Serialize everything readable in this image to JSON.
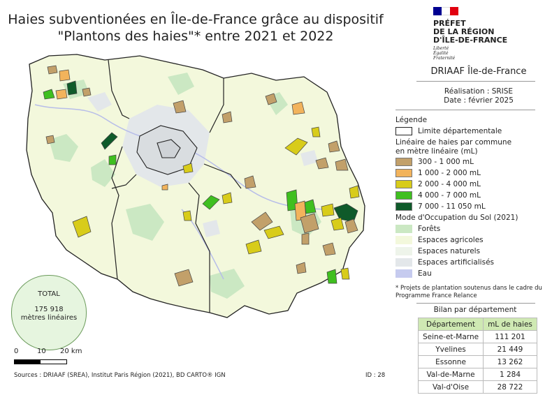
{
  "title": {
    "line1": "Haies subventionées en Île-de-France grâce au dispositif",
    "line2": "\"Plantons des haies\"* entre 2021 et 2022"
  },
  "logo": {
    "line1": "PRÉFET",
    "line2": "DE LA RÉGION",
    "line3": "D'ÎLE-DE-FRANCE",
    "motto1": "Liberté",
    "motto2": "Égalité",
    "motto3": "Fraternité",
    "flag_colors": [
      "#000091",
      "#ffffff",
      "#e1000f"
    ]
  },
  "org": "DRIAAF Île-de-France",
  "realisation": {
    "line1": "Réalisation : SRISE",
    "line2": "Date : février 2025"
  },
  "legend": {
    "title": "Légende",
    "boundary_label": "Limite départementale",
    "hedge_title_1": "Linéaire de haies par commune",
    "hedge_title_2": "en mètre linéaire (mL)",
    "hedge_classes": [
      {
        "label": "300 - 1 000 mL",
        "color": "#c2a06a"
      },
      {
        "label": "1 000 - 2 000 mL",
        "color": "#f2b35c"
      },
      {
        "label": "2 000 - 4 000 mL",
        "color": "#d8cc1a"
      },
      {
        "label": "4 000 - 7 000 mL",
        "color": "#3fbf1f"
      },
      {
        "label": "7 000 - 11 050 mL",
        "color": "#0f5a2a"
      }
    ],
    "land_title": "Mode d'Occupation du Sol (2021)",
    "land_classes": [
      {
        "label": "Forêts",
        "color": "#cbe8c3"
      },
      {
        "label": "Espaces agricoles",
        "color": "#f3f8dc"
      },
      {
        "label": "Espaces naturels",
        "color": "#eef4ea"
      },
      {
        "label": "Espaces artificialisés",
        "color": "#e3e7ea"
      },
      {
        "label": "Eau",
        "color": "#c6cbef"
      }
    ]
  },
  "footnote": {
    "line1": "* Projets de plantation soutenus dans le cadre du",
    "line2": "Programme France Relance"
  },
  "bilan": {
    "title": "Bilan par département",
    "headers": [
      "Département",
      "mL de haies"
    ],
    "rows": [
      [
        "Seine-et-Marne",
        "111 201"
      ],
      [
        "Yvelines",
        "21 449"
      ],
      [
        "Essonne",
        "13 262"
      ],
      [
        "Val-de-Marne",
        "1 284"
      ],
      [
        "Val-d'Oise",
        "28 722"
      ]
    ]
  },
  "total": {
    "label": "TOTAL",
    "value": "175 918",
    "unit": "mètres linéaires"
  },
  "scale": {
    "tick0": "0",
    "tick1": "10",
    "tick2": "20 km"
  },
  "sources": "Sources : DRIAAF (SREA), Institut Paris Région (2021), BD CARTO® IGN",
  "id": "ID : 28"
}
